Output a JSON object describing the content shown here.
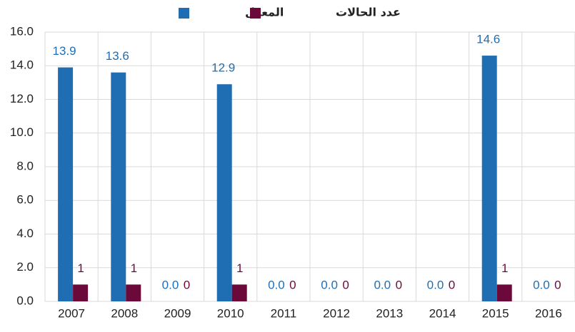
{
  "chart_data": {
    "type": "bar",
    "categories": [
      "2007",
      "2008",
      "2009",
      "2010",
      "2011",
      "2012",
      "2013",
      "2014",
      "2015",
      "2016"
    ],
    "series": [
      {
        "name": "المعدل",
        "color": "#1f6eb4",
        "values": [
          13.9,
          13.6,
          0,
          12.9,
          0,
          0,
          0,
          0,
          14.6,
          0
        ],
        "value_labels": [
          "13.9",
          "13.6",
          "0.0",
          "12.9",
          "0.0",
          "0.0",
          "0.0",
          "0.0",
          "14.6",
          "0.0"
        ]
      },
      {
        "name": "عدد الحالات",
        "color": "#6b0a3a",
        "values": [
          1,
          1,
          0,
          1,
          0,
          0,
          0,
          0,
          1,
          0
        ]
      }
    ],
    "ylim": [
      0,
      16
    ],
    "yticks": [
      {
        "value": 0,
        "label": "0.0"
      },
      {
        "value": 2,
        "label": "2.0"
      },
      {
        "value": 4,
        "label": "4.0"
      },
      {
        "value": 6,
        "label": "6.0"
      },
      {
        "value": 8,
        "label": "8.0"
      },
      {
        "value": 10,
        "label": "10.0"
      },
      {
        "value": 12,
        "label": "12.0"
      },
      {
        "value": 14,
        "label": "14.0"
      },
      {
        "value": 16,
        "label": "16.0"
      }
    ],
    "grid": true
  }
}
